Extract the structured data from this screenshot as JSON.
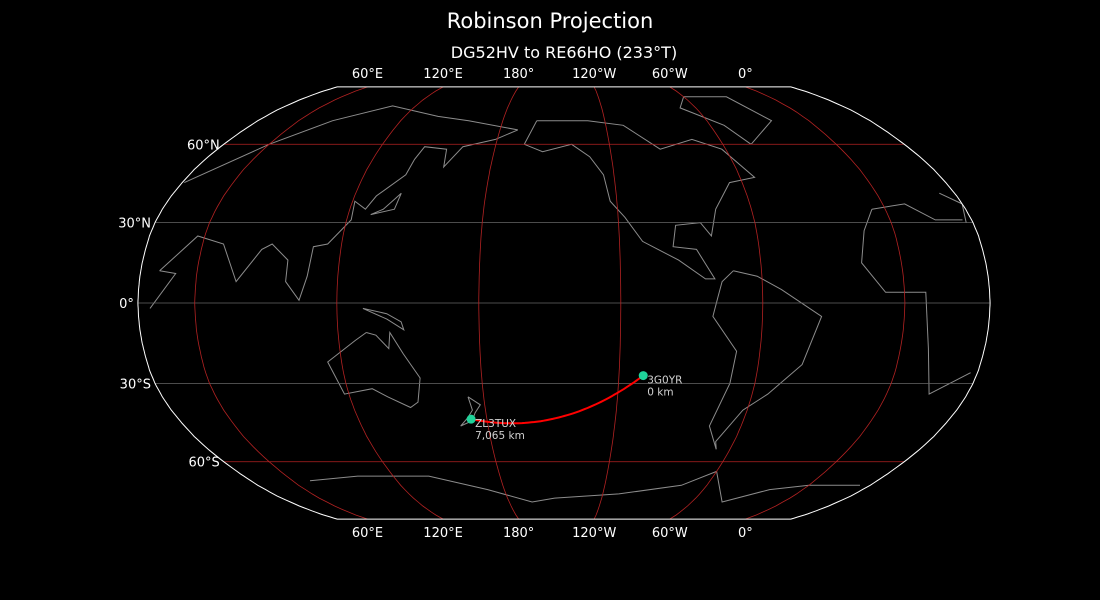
{
  "title": "Robinson Projection",
  "subtitle": "DG52HV to RE66HO (233°T)",
  "map": {
    "projection": "robinson",
    "central_longitude": -144,
    "meridian_labels": [
      {
        "lon": 60,
        "label": "60°E"
      },
      {
        "lon": 120,
        "label": "120°E"
      },
      {
        "lon": 180,
        "label": "180°"
      },
      {
        "lon": -120,
        "label": "120°W"
      },
      {
        "lon": -60,
        "label": "60°W"
      },
      {
        "lon": 0,
        "label": "0°"
      }
    ],
    "parallel_labels": [
      {
        "lat": 60,
        "label": "60°N"
      },
      {
        "lat": 30,
        "label": "30°N"
      },
      {
        "lat": 0,
        "label": "0°"
      },
      {
        "lat": -30,
        "label": "30°S"
      },
      {
        "lat": -60,
        "label": "60°S"
      }
    ],
    "colors": {
      "background": "#000000",
      "outline": "#ffffff",
      "coastline": "#8c8c8c",
      "graticule_major": "#b22222",
      "graticule_minor": "#666666",
      "path": "#ff0000",
      "marker": "#1fd39a",
      "label": "#d0d0d0"
    },
    "stations": [
      {
        "call": "3G0YR",
        "locator": "DG52HV",
        "lat": -27.1,
        "lon": -109.4,
        "distance": "0 km"
      },
      {
        "call": "ZL3TUX",
        "locator": "RE66HO",
        "lat": -43.4,
        "lon": 172.6,
        "distance": "7,065 km"
      }
    ]
  }
}
